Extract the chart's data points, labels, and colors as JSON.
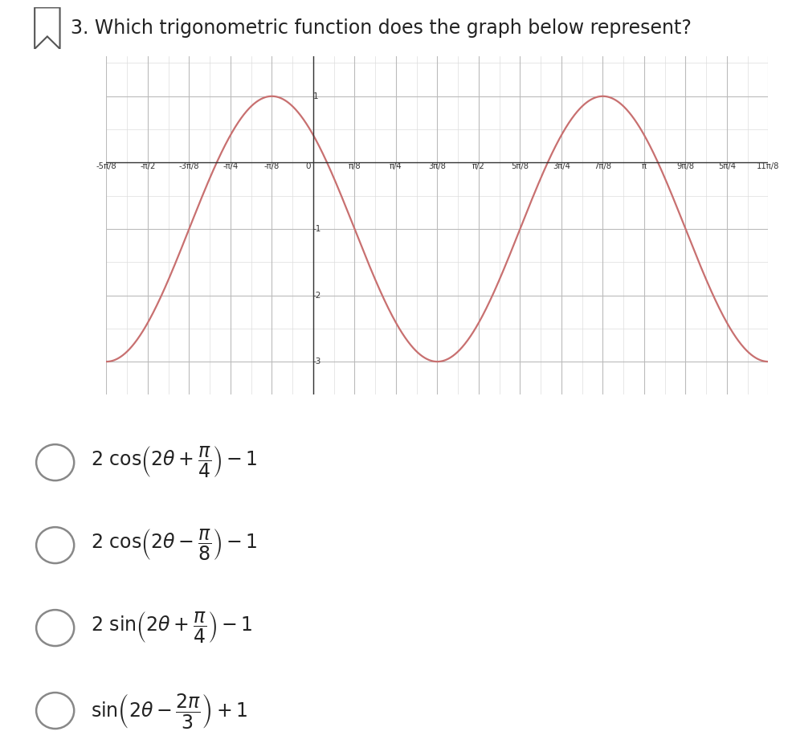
{
  "title": "3. Which trigonometric function does the graph below represent?",
  "amplitude": 2,
  "vertical_shift": -1,
  "phase_shift": 0.7853981633974483,
  "frequency": 2,
  "y_min": -3.5,
  "y_max": 1.6,
  "ytick_values": [
    1,
    -1,
    -2,
    -3
  ],
  "curve_color": "#c87070",
  "curve_linewidth": 1.6,
  "grid_major_color": "#bbbbbb",
  "grid_minor_color": "#dddddd",
  "bg_color": "#ffffff",
  "axis_color": "#333333",
  "x_tick_labels": [
    [
      "-5π/8",
      -1.9634954084936207
    ],
    [
      "-π/2",
      -1.5707963267948966
    ],
    [
      "-3π/8",
      -1.1780972450961724
    ],
    [
      "-π/4",
      -0.7853981633974483
    ],
    [
      "-π/8",
      -0.39269908169872414
    ],
    [
      "π/8",
      0.39269908169872414
    ],
    [
      "π/4",
      0.7853981633974483
    ],
    [
      "3π/8",
      1.1780972450961724
    ],
    [
      "π/2",
      1.5707963267948966
    ],
    [
      "5π/8",
      1.9634954084936207
    ],
    [
      "3π/4",
      2.356194490192345
    ],
    [
      "7π/8",
      2.748893571891069
    ],
    [
      "π",
      3.141592653589793
    ],
    [
      "9π/8",
      3.5342917352885173
    ],
    [
      "5π/4",
      3.9269908169872414
    ],
    [
      "11π/8",
      4.319689898685966
    ]
  ],
  "choice_texts": [
    "2 cos(2\\theta + \\frac{\\pi}{4}) - 1",
    "2 cos(2\\theta - \\frac{\\pi}{8}) - 1",
    "2 sin(2\\theta + \\frac{\\pi}{4}) - 1",
    "sin(2\\theta - \\frac{2\\pi}{3}) + 1"
  ],
  "choice_latex": [
    "$2\\ \\cos\\!\\left(2\\theta + \\dfrac{\\pi}{4}\\right) - 1$",
    "$2\\ \\cos\\!\\left(2\\theta - \\dfrac{\\pi}{8}\\right) - 1$",
    "$2\\ \\sin\\!\\left(2\\theta + \\dfrac{\\pi}{4}\\right) - 1$",
    "$\\sin\\!\\left(2\\theta - \\dfrac{2\\pi}{3}\\right) + 1$"
  ]
}
